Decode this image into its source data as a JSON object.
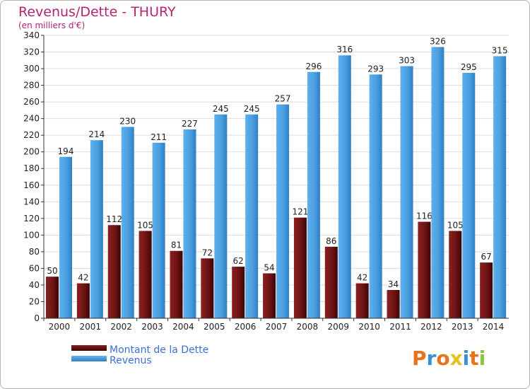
{
  "chart_data": {
    "type": "bar",
    "title": "Revenus/Dette - THURY",
    "subtitle": "(en milliers d'€)",
    "categories": [
      "2000",
      "2001",
      "2002",
      "2003",
      "2004",
      "2005",
      "2006",
      "2007",
      "2008",
      "2009",
      "2010",
      "2011",
      "2012",
      "2013",
      "2014"
    ],
    "series": [
      {
        "name": "Montant de la Dette",
        "color": "#7a1a1a",
        "values": [
          50,
          42,
          112,
          105,
          81,
          72,
          62,
          54,
          121,
          86,
          42,
          34,
          116,
          105,
          67
        ]
      },
      {
        "name": "Revenus",
        "color": "#4a9fe0",
        "values": [
          194,
          214,
          230,
          211,
          227,
          245,
          245,
          257,
          296,
          316,
          293,
          303,
          326,
          295,
          315
        ]
      }
    ],
    "ylim": [
      0,
      340
    ],
    "ytick_step": 20,
    "grid": true,
    "legend": "bottom-left"
  },
  "brand": {
    "logo_text": "Proxiti",
    "colors": [
      "#e8731b",
      "#3a8fd9",
      "#e8731b",
      "#e8c21b",
      "#3a8fd9",
      "#e8731b",
      "#8cc63f"
    ]
  }
}
